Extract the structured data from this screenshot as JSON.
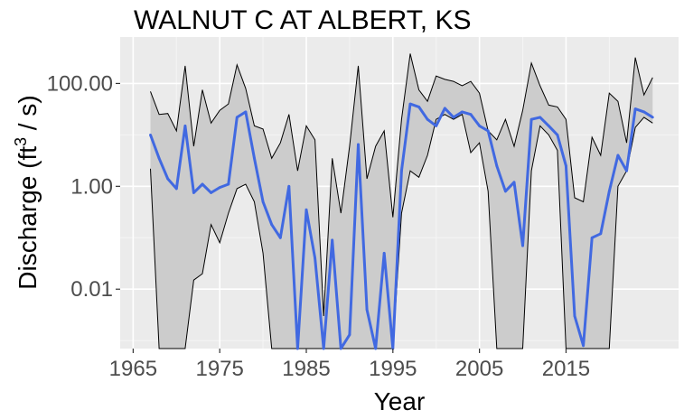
{
  "chart_data": {
    "type": "line",
    "title": "WALNUT C AT ALBERT, KS",
    "xlabel": "Year",
    "ylabel": {
      "prefix": "Discharge (ft",
      "sup": "3",
      "suffix": " / s)"
    },
    "y_scale": "log10",
    "ylim": [
      0.0007,
      800
    ],
    "xlim": [
      1963.5,
      2028
    ],
    "x_ticks": [
      1965,
      1975,
      1985,
      1995,
      2005,
      2015
    ],
    "x_tick_labels": [
      "1965",
      "1975",
      "1985",
      "1995",
      "2005",
      "2015"
    ],
    "y_ticks": [
      0.01,
      1,
      100
    ],
    "y_tick_labels": [
      "0.01",
      "1.00",
      "100.00"
    ],
    "grid": true,
    "panel_background": "#ebebeb",
    "ribbon_color": "#cccccc",
    "line_color": "#4169e1",
    "x": [
      1967,
      1968,
      1969,
      1970,
      1971,
      1972,
      1973,
      1974,
      1975,
      1976,
      1977,
      1978,
      1979,
      1980,
      1981,
      1982,
      1983,
      1984,
      1985,
      1986,
      1987,
      1988,
      1989,
      1990,
      1991,
      1992,
      1993,
      1994,
      1995,
      1996,
      1997,
      1998,
      1999,
      2000,
      2001,
      2002,
      2003,
      2004,
      2005,
      2006,
      2007,
      2008,
      2009,
      2010,
      2011,
      2012,
      2013,
      2014,
      2015,
      2016,
      2017,
      2018,
      2019,
      2020,
      2021,
      2022,
      2023,
      2024,
      2025
    ],
    "series": [
      {
        "name": "median",
        "values": [
          10,
          3.5,
          1.4,
          0.9,
          15,
          0.75,
          1.1,
          0.75,
          0.95,
          1.1,
          22,
          28,
          3.5,
          0.5,
          0.18,
          0.1,
          1.0,
          0.0004,
          0.35,
          0.04,
          0.0005,
          0.09,
          0.0007,
          0.0013,
          6.5,
          0.004,
          0.0003,
          0.05,
          0.0005,
          2,
          40,
          35,
          20,
          15,
          33,
          22,
          28,
          25,
          15,
          12,
          2.5,
          0.8,
          1.2,
          0.07,
          20,
          22,
          15,
          10,
          2.5,
          0.003,
          0.0008,
          0.1,
          0.12,
          0.8,
          4,
          2,
          32,
          28,
          22
        ]
      },
      {
        "name": "upper",
        "values": [
          70,
          25,
          26,
          12,
          220,
          6,
          75,
          17,
          30,
          40,
          230,
          80,
          15,
          13,
          3.5,
          7,
          25,
          2,
          15,
          8,
          0.003,
          3.5,
          0.3,
          6,
          220,
          1.4,
          6,
          12,
          0.25,
          20,
          380,
          75,
          45,
          140,
          120,
          110,
          90,
          110,
          65,
          12,
          8,
          20,
          6,
          30,
          250,
          90,
          38,
          35,
          20,
          0.6,
          0.5,
          9,
          4,
          65,
          45,
          7,
          320,
          60,
          130
        ]
      },
      {
        "name": "lower",
        "values": [
          2.2,
          0.0004,
          0.0004,
          0.0004,
          0.0004,
          0.015,
          0.02,
          0.18,
          0.08,
          0.3,
          0.9,
          1.1,
          0.5,
          0.05,
          0.0004,
          0.0004,
          0.0004,
          0.0004,
          0.0004,
          0.0004,
          0.0004,
          0.0004,
          0.0004,
          0.0004,
          0.0004,
          0.0004,
          0.0004,
          0.0004,
          0.0004,
          0.3,
          2,
          1.5,
          4,
          20,
          25,
          20,
          25,
          4.5,
          7,
          0.8,
          0.0004,
          0.0004,
          0.0004,
          0.0004,
          2,
          15,
          10,
          5,
          0.0004,
          0.0004,
          0.0004,
          0.0004,
          0.0004,
          0.0004,
          1,
          2,
          14,
          22,
          17
        ]
      }
    ]
  }
}
